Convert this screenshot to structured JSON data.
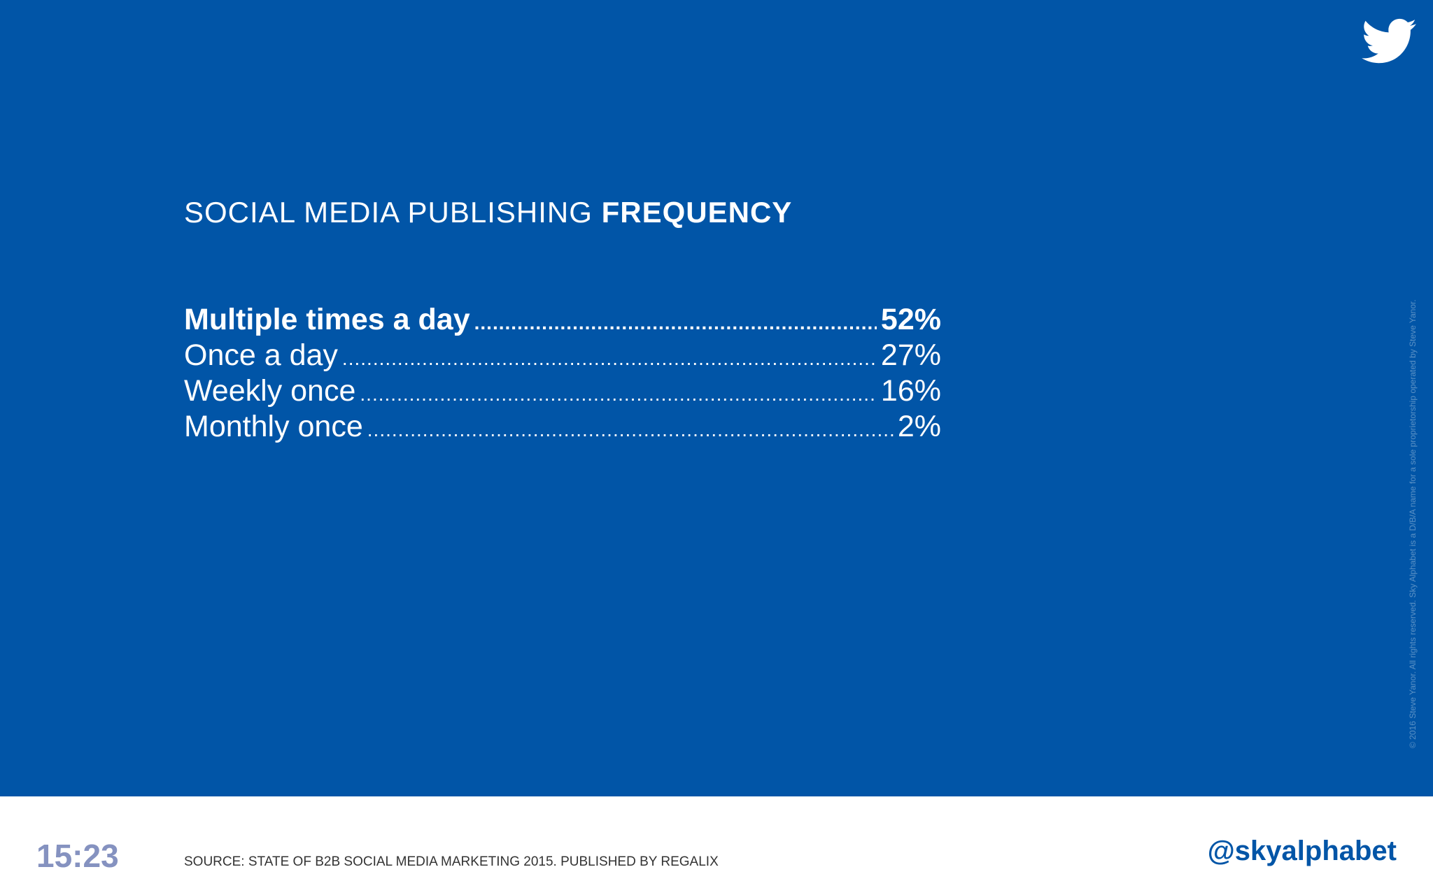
{
  "slide": {
    "title_light": "SOCIAL MEDIA PUBLISHING",
    "title_bold": "FREQUENCY",
    "items": [
      {
        "label": "Multiple times a day",
        "value": "52%"
      },
      {
        "label": "Once a day",
        "value": "27%"
      },
      {
        "label": "Weekly once",
        "value": "16%"
      },
      {
        "label": "Monthly once",
        "value": "2%"
      }
    ],
    "copyright": "© 2016 Steve Yanor. All rights reserved. Sky Alphabet is a D/B/A name for a sole proprietorship operated by Steve Yanor.",
    "logo_icon": "twitter-bird-icon"
  },
  "footer": {
    "time": "15:23",
    "source": "SOURCE: STATE OF B2B SOCIAL MEDIA MARKETING 2015. PUBLISHED BY REGALIX",
    "handle": "@skyalphabet"
  },
  "colors": {
    "background": "#0155a7",
    "footer_background": "#ffffff",
    "time": "#8592c0",
    "handle": "#0155a7"
  }
}
